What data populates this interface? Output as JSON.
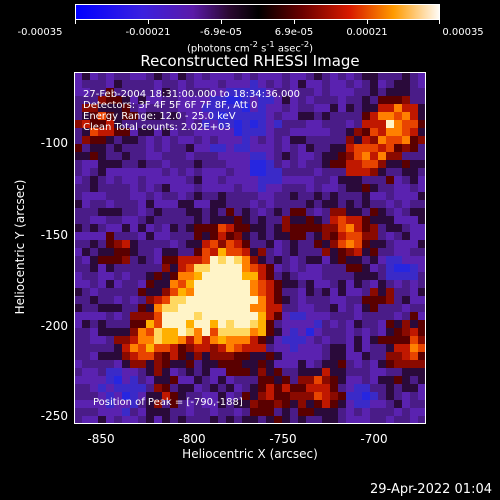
{
  "title": "Reconstructed RHESSI Image",
  "colorbar": {
    "ticks": [
      "-0.00035",
      "-0.00021",
      "-6.9e-05",
      "6.9e-05",
      "0.00021",
      "0.00035"
    ],
    "units_prefix": "(photons cm",
    "units_rest": " s",
    "units_end": " asec",
    "units_close": ")",
    "sup1": "-2",
    "sup2": "-1",
    "sup3": "-2"
  },
  "overlay": {
    "line1": "27-Feb-2004 18:31:00.000 to 18:34:36.000",
    "line2": "Detectors: 3F 4F 5F 6F 7F 8F, Att 0",
    "line3": "Energy Range: 12.0 - 25.0 keV",
    "line4": "Clean     Total counts: 2.02E+03",
    "peak": "Position of Peak = [-790,-188]"
  },
  "axes": {
    "xlabel": "Heliocentric X (arcsec)",
    "ylabel": "Heliocentric Y (arcsec)",
    "xticks": [
      "-850",
      "-800",
      "-750",
      "-700"
    ],
    "yticks": [
      "-100",
      "-150",
      "-200",
      "-250"
    ]
  },
  "footer": {
    "timestamp": "29-Apr-2022 01:04"
  },
  "colors": {
    "background": "#000000",
    "text": "#ffffff"
  }
}
